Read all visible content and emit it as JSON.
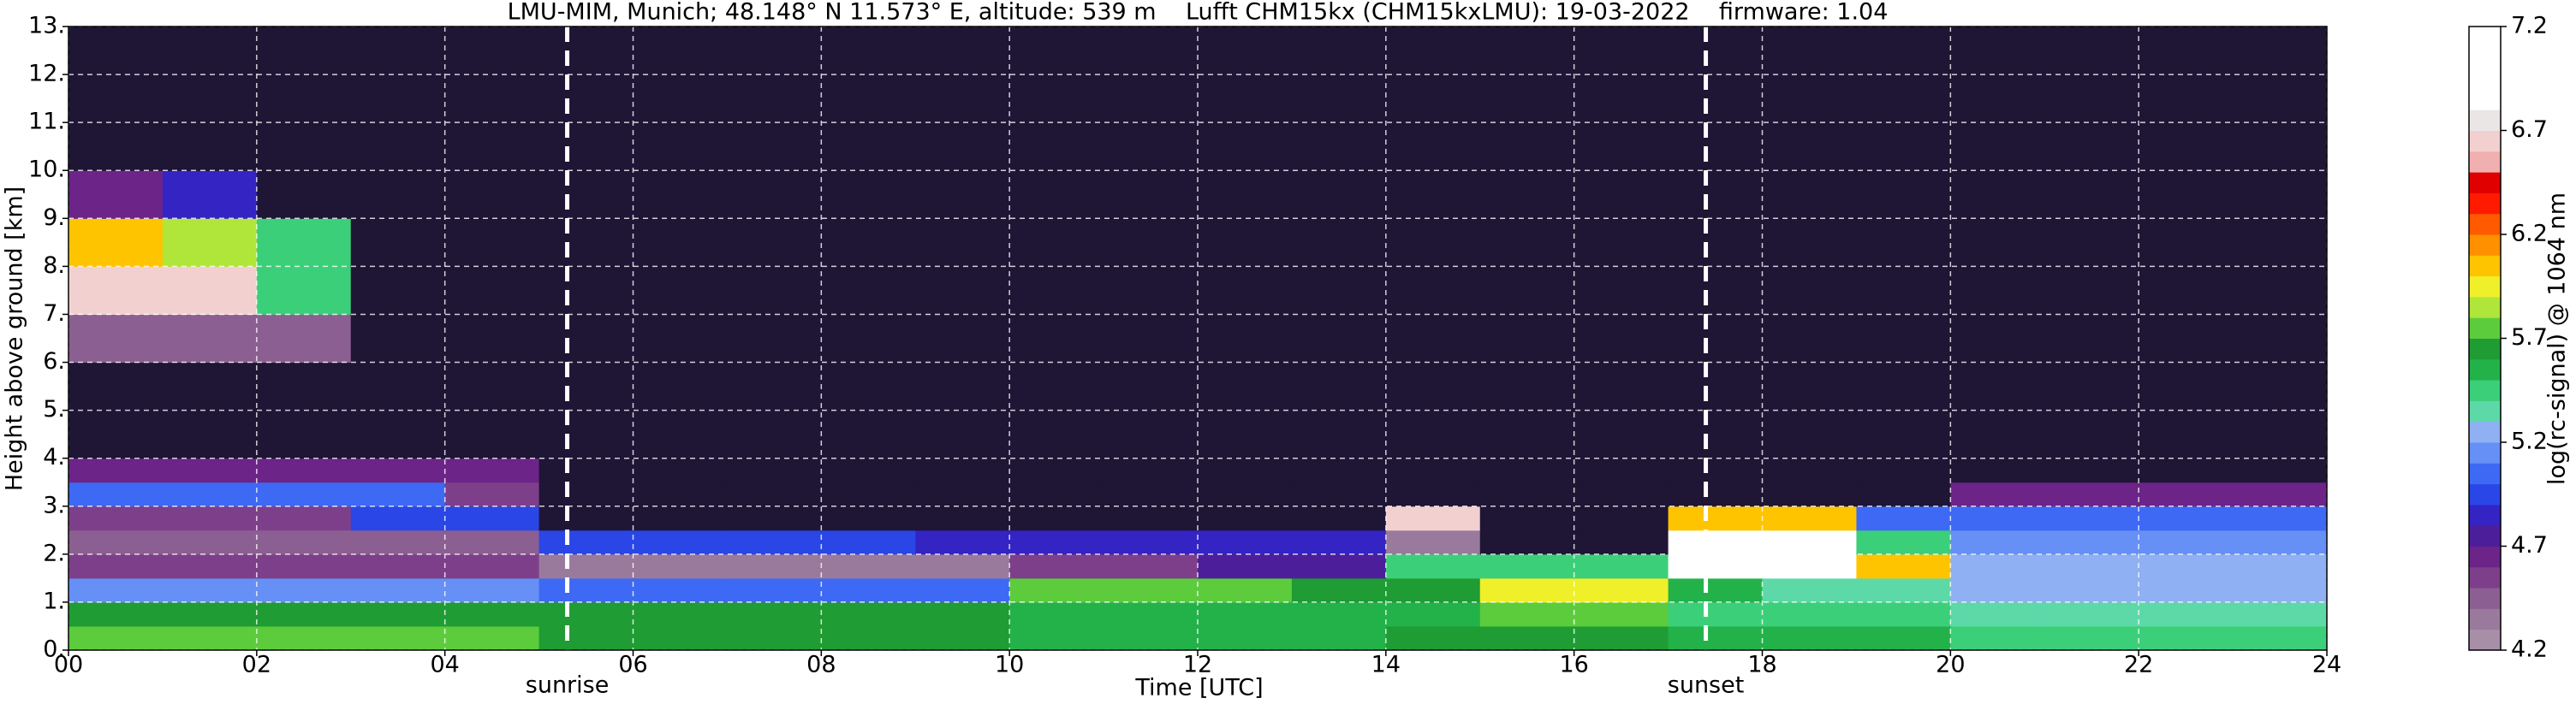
{
  "chart_data": {
    "type": "heatmap",
    "title": "LMU-MIM, Munich; 48.148° N 11.573° E, altitude: 539 m    Lufft CHM15kx (CHM15kxLMU): 19-03-2022    firmware: 1.04",
    "x_label": "Time [UTC]",
    "y_label": "Height above ground [km]",
    "xlim": [
      0,
      24
    ],
    "ylim": [
      0,
      13
    ],
    "xticks": [
      {
        "value": 0,
        "label": "00"
      },
      {
        "value": 2,
        "label": "02"
      },
      {
        "value": 4,
        "label": "04"
      },
      {
        "value": 6,
        "label": "06"
      },
      {
        "value": 8,
        "label": "08"
      },
      {
        "value": 10,
        "label": "10"
      },
      {
        "value": 12,
        "label": "12"
      },
      {
        "value": 14,
        "label": "14"
      },
      {
        "value": 16,
        "label": "16"
      },
      {
        "value": 18,
        "label": "18"
      },
      {
        "value": 20,
        "label": "20"
      },
      {
        "value": 22,
        "label": "22"
      },
      {
        "value": 24,
        "label": "24"
      }
    ],
    "yticks": [
      {
        "value": 0,
        "label": "0."
      },
      {
        "value": 1,
        "label": "1."
      },
      {
        "value": 2,
        "label": "2."
      },
      {
        "value": 3,
        "label": "3."
      },
      {
        "value": 4,
        "label": "4."
      },
      {
        "value": 5,
        "label": "5."
      },
      {
        "value": 6,
        "label": "6."
      },
      {
        "value": 7,
        "label": "7."
      },
      {
        "value": 8,
        "label": "8."
      },
      {
        "value": 9,
        "label": "9."
      },
      {
        "value": 10,
        "label": "10."
      },
      {
        "value": 11,
        "label": "11."
      },
      {
        "value": 12,
        "label": "12."
      },
      {
        "value": 13,
        "label": "13."
      }
    ],
    "grid": true,
    "x_edges": [
      0,
      1,
      2,
      3,
      4,
      5,
      6,
      7,
      8,
      9,
      10,
      11,
      12,
      13,
      14,
      15,
      16,
      17,
      18,
      19,
      20,
      21,
      22,
      23,
      24
    ],
    "y_edges": [
      0,
      0.5,
      1,
      1.5,
      2,
      2.5,
      3,
      3.5,
      4,
      6,
      7,
      8,
      9,
      10,
      13
    ],
    "z": [
      [
        5.7,
        5.7,
        5.7,
        5.7,
        5.7,
        5.6,
        5.6,
        5.6,
        5.6,
        5.6,
        5.5,
        5.5,
        5.5,
        5.5,
        5.6,
        5.6,
        5.6,
        5.5,
        5.5,
        5.5,
        5.4,
        5.4,
        5.4,
        5.4
      ],
      [
        5.6,
        5.6,
        5.6,
        5.6,
        5.6,
        5.6,
        5.6,
        5.6,
        5.6,
        5.6,
        5.5,
        5.5,
        5.5,
        5.5,
        5.5,
        5.7,
        5.7,
        5.4,
        5.4,
        5.4,
        5.3,
        5.3,
        5.3,
        5.3
      ],
      [
        5.1,
        5.1,
        5.1,
        5.1,
        5.1,
        5.0,
        5.0,
        5.0,
        5.0,
        5.0,
        5.7,
        5.7,
        5.7,
        5.6,
        5.6,
        5.9,
        5.9,
        5.5,
        5.3,
        5.3,
        5.2,
        5.2,
        5.2,
        5.2
      ],
      [
        4.5,
        4.5,
        4.5,
        4.5,
        4.5,
        4.3,
        4.3,
        4.3,
        4.3,
        4.3,
        4.5,
        4.5,
        4.7,
        4.7,
        5.4,
        5.4,
        5.4,
        6.8,
        6.8,
        6.0,
        5.2,
        5.2,
        5.2,
        5.2
      ],
      [
        4.4,
        4.4,
        4.4,
        4.4,
        4.4,
        4.9,
        4.9,
        4.9,
        4.9,
        4.8,
        4.8,
        4.8,
        4.8,
        4.8,
        4.3,
        4.1,
        4.1,
        6.8,
        6.8,
        5.4,
        5.1,
        5.1,
        5.1,
        5.1
      ],
      [
        4.5,
        4.5,
        4.5,
        4.9,
        4.9,
        4.1,
        4.1,
        4.1,
        4.1,
        4.1,
        4.1,
        4.1,
        4.1,
        4.1,
        6.6,
        4.1,
        4.1,
        6.0,
        6.0,
        5.0,
        5.0,
        5.0,
        5.0,
        5.0
      ],
      [
        5.0,
        5.0,
        5.0,
        5.0,
        4.5,
        4.1,
        4.1,
        4.1,
        4.1,
        4.1,
        4.1,
        4.1,
        4.1,
        4.1,
        4.1,
        4.1,
        4.1,
        4.0,
        4.0,
        4.0,
        4.6,
        4.6,
        4.6,
        4.6
      ],
      [
        4.6,
        4.6,
        4.6,
        4.6,
        4.6,
        4.1,
        4.1,
        4.1,
        4.1,
        4.1,
        4.1,
        4.1,
        4.1,
        4.1,
        4.1,
        4.1,
        4.1,
        4.0,
        4.0,
        4.0,
        4.0,
        4.0,
        4.0,
        4.0
      ],
      [
        4.0,
        4.0,
        4.0,
        4.0,
        4.0,
        4.1,
        4.1,
        4.1,
        4.1,
        4.1,
        4.1,
        4.1,
        4.1,
        4.1,
        4.1,
        4.1,
        4.1,
        4.0,
        4.0,
        4.0,
        4.0,
        4.0,
        4.0,
        4.0
      ],
      [
        4.4,
        4.4,
        4.4,
        4.0,
        4.0,
        4.1,
        4.1,
        4.1,
        4.1,
        4.1,
        4.1,
        4.1,
        4.1,
        4.1,
        4.1,
        4.1,
        4.1,
        4.0,
        4.0,
        4.0,
        4.0,
        4.0,
        4.0,
        4.0
      ],
      [
        6.6,
        6.6,
        5.4,
        4.0,
        4.0,
        4.1,
        4.1,
        4.1,
        4.1,
        4.1,
        4.1,
        4.1,
        4.1,
        4.1,
        4.1,
        4.1,
        4.1,
        4.0,
        4.0,
        4.0,
        4.0,
        4.0,
        4.0,
        4.0
      ],
      [
        6.0,
        5.8,
        5.4,
        4.0,
        4.0,
        4.1,
        4.1,
        4.1,
        4.1,
        4.1,
        4.1,
        4.1,
        4.1,
        4.1,
        4.1,
        4.1,
        4.1,
        4.0,
        4.0,
        4.0,
        4.0,
        4.0,
        4.0,
        4.0
      ],
      [
        4.6,
        4.8,
        4.0,
        4.0,
        4.0,
        4.1,
        4.1,
        4.1,
        4.1,
        4.1,
        4.1,
        4.1,
        4.1,
        4.1,
        4.1,
        4.1,
        4.1,
        4.0,
        4.0,
        4.0,
        4.0,
        4.0,
        4.0,
        4.0
      ],
      [
        4.0,
        4.0,
        4.0,
        4.0,
        4.0,
        4.1,
        4.1,
        4.1,
        4.1,
        4.1,
        4.1,
        4.1,
        4.1,
        4.1,
        4.1,
        4.1,
        4.1,
        4.0,
        4.0,
        4.0,
        4.0,
        4.0,
        4.0,
        4.0
      ]
    ],
    "annotations": [
      {
        "text": "sunrise",
        "x": 5.3
      },
      {
        "text": "sunset",
        "x": 17.4
      }
    ],
    "colorbar": {
      "label": "log(rc-signal) @ 1064 nm",
      "lim": [
        4.2,
        7.2
      ],
      "ticks": [
        4.2,
        4.7,
        5.2,
        5.7,
        6.2,
        6.7,
        7.2
      ],
      "under_color": "#1f1535",
      "colors": [
        "#a88fa8",
        "#9a7a9c",
        "#8c5f92",
        "#7e3f8a",
        "#6c2488",
        "#4d1e9a",
        "#3424c4",
        "#2a46e6",
        "#3d69f4",
        "#6690f5",
        "#8fb0f3",
        "#5dd9a8",
        "#3ccf7a",
        "#23b24a",
        "#1f9c33",
        "#5ccc3c",
        "#b0e63a",
        "#f0f02a",
        "#ffc400",
        "#ff9000",
        "#ff5a00",
        "#ff1a00",
        "#e00000",
        "#f0b0b0",
        "#f3d0d0",
        "#ebe6e6",
        "#ffffff",
        "#ffffff",
        "#ffffff",
        "#ffffff"
      ]
    }
  }
}
